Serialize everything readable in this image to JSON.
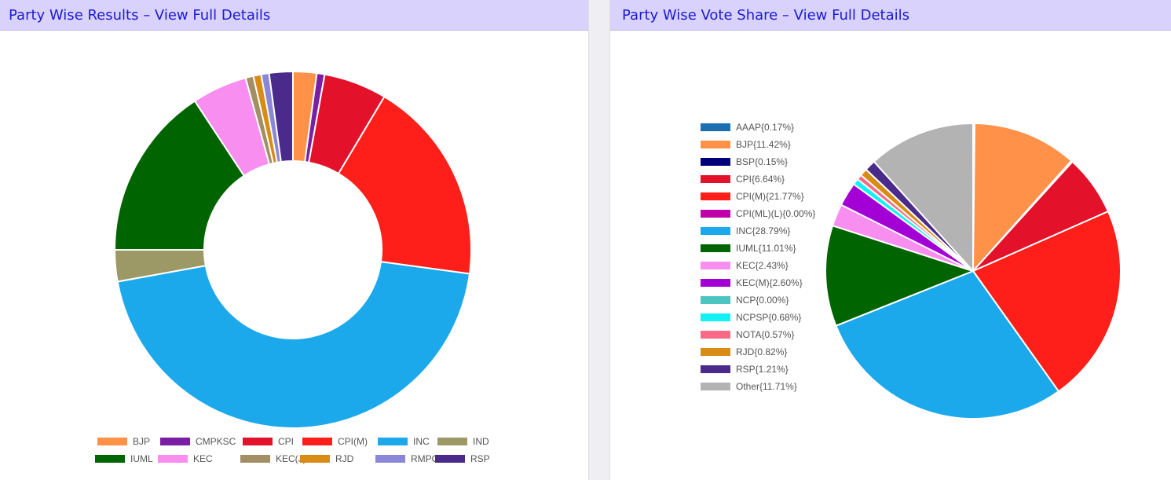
{
  "colors": {
    "header_bg": "#d9d2fc",
    "header_link": "#1a1ad6"
  },
  "left_panel": {
    "title": "Party Wise Results – View Full Details"
  },
  "right_panel": {
    "title": "Party Wise Vote Share – View Full Details"
  },
  "chart_data": [
    {
      "type": "doughnut",
      "title": "",
      "legend_position": "bottom",
      "categories": [
        "BJP",
        "CMPKSC",
        "CPI",
        "CPI(M)",
        "INC",
        "IND",
        "IUML",
        "KEC",
        "KEC(J)",
        "RJD",
        "RMPOI",
        "RSP"
      ],
      "values": [
        3,
        1,
        8,
        26,
        63,
        4,
        22,
        7,
        1,
        1,
        1,
        3
      ],
      "colors": [
        "#ff9149",
        "#7b1fa2",
        "#e3122a",
        "#ff1f1a",
        "#1ba9ec",
        "#9c9966",
        "#006400",
        "#f78ef0",
        "#a38f64",
        "#d98c15",
        "#8a87d8",
        "#4a2a8a"
      ]
    },
    {
      "type": "pie",
      "title": "",
      "legend_position": "left",
      "categories": [
        "AAAP",
        "BJP",
        "BSP",
        "CPI",
        "CPI(M)",
        "CPI(ML)(L)",
        "INC",
        "IUML",
        "KEC",
        "KEC(M)",
        "NCP",
        "NCPSP",
        "NOTA",
        "RJD",
        "RSP",
        "Other"
      ],
      "legend_labels": [
        "AAAP{0.17%}",
        "BJP{11.42%}",
        "BSP{0.15%}",
        "CPI{6.64%}",
        "CPI(M){21.77%}",
        "CPI(ML)(L){0.00%}",
        "INC{28.79%}",
        "IUML{11.01%}",
        "KEC{2.43%}",
        "KEC(M){2.60%}",
        "NCP{0.00%}",
        "NCPSP{0.68%}",
        "NOTA{0.57%}",
        "RJD{0.82%}",
        "RSP{1.21%}",
        "Other{11.71%}"
      ],
      "values": [
        0.17,
        11.42,
        0.15,
        6.64,
        21.77,
        0.0,
        28.79,
        11.01,
        2.43,
        2.6,
        0.0,
        0.68,
        0.57,
        0.82,
        1.21,
        11.71
      ],
      "colors": [
        "#1a6fb0",
        "#ff9149",
        "#00007a",
        "#e3122a",
        "#ff1f1a",
        "#c000a8",
        "#1ba9ec",
        "#006400",
        "#f78ef0",
        "#a300d6",
        "#4dc4c0",
        "#12f2f2",
        "#fb6a84",
        "#d98c15",
        "#4a2a8a",
        "#b3b3b3"
      ]
    }
  ]
}
